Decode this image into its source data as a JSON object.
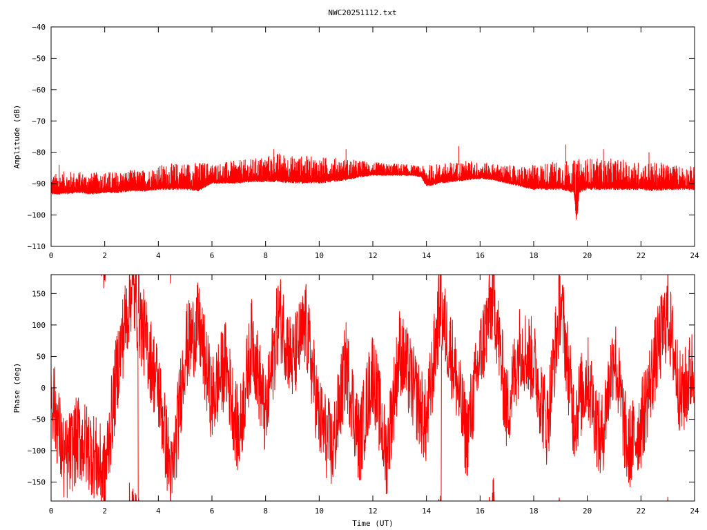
{
  "chart_data": [
    {
      "type": "line",
      "title": "NWC20251112.txt",
      "xlabel": "",
      "ylabel": "Amplitude (dB)",
      "xlim": [
        0,
        24
      ],
      "ylim": [
        -110,
        -40
      ],
      "xticks": [
        0,
        2,
        4,
        6,
        8,
        10,
        12,
        14,
        16,
        18,
        20,
        22,
        24
      ],
      "yticks": [
        -110,
        -100,
        -90,
        -80,
        -70,
        -60,
        -50,
        -40
      ],
      "grid": false,
      "line_color": "#ff0000",
      "series": [
        {
          "x": [
            0,
            0.5,
            1,
            1.5,
            2,
            2.5,
            3,
            3.5,
            4,
            4.5,
            5,
            5.5,
            5.8,
            6,
            6.5,
            7,
            7.5,
            8,
            8.5,
            9,
            9.5,
            10,
            10.5,
            11,
            11.5,
            12,
            12.5,
            13,
            13.5,
            13.8,
            14,
            14.5,
            15,
            15.5,
            16,
            16.5,
            17,
            17.5,
            18,
            18.5,
            19,
            19.5,
            19.6,
            19.7,
            20,
            20.5,
            21,
            21.5,
            22,
            22.5,
            23,
            23.5,
            24
          ],
          "y_low": [
            -93.5,
            -93.5,
            -93,
            -93.5,
            -93,
            -93,
            -92.5,
            -92.5,
            -92,
            -92,
            -92,
            -92.5,
            -91,
            -90,
            -90,
            -90,
            -89.5,
            -89.5,
            -89.5,
            -90,
            -90,
            -90,
            -89.5,
            -89,
            -88,
            -87.5,
            -87.5,
            -87.5,
            -87.5,
            -88,
            -91,
            -90,
            -89.5,
            -89,
            -88.5,
            -89,
            -90,
            -91,
            -92,
            -92,
            -92,
            -93,
            -102.5,
            -93,
            -92,
            -92,
            -92,
            -92,
            -92,
            -92.5,
            -92,
            -92,
            -92
          ],
          "y_high": [
            -87,
            -86,
            -86,
            -86.5,
            -86,
            -86,
            -85.5,
            -85.5,
            -84,
            -83.5,
            -83,
            -83,
            -83,
            -83.5,
            -83,
            -82.5,
            -82,
            -81,
            -80,
            -81,
            -81,
            -81.5,
            -81.5,
            -82,
            -82.5,
            -83,
            -83.5,
            -83.5,
            -84,
            -84.5,
            -84,
            -83.5,
            -83,
            -82.5,
            -83,
            -83.5,
            -84,
            -84.5,
            -84,
            -83,
            -82.5,
            -82.5,
            -82,
            -82,
            -81.5,
            -82,
            -82,
            -82.5,
            -83,
            -83,
            -83.5,
            -84,
            -84.5
          ]
        }
      ]
    },
    {
      "type": "line",
      "title": "",
      "xlabel": "Time (UT)",
      "ylabel": "Phase (deg)",
      "xlim": [
        0,
        24
      ],
      "ylim": [
        -180,
        180
      ],
      "xticks": [
        0,
        2,
        4,
        6,
        8,
        10,
        12,
        14,
        16,
        18,
        20,
        22,
        24
      ],
      "yticks": [
        -150,
        -100,
        -50,
        0,
        50,
        100,
        150
      ],
      "grid": false,
      "line_color": "#ff0000",
      "series": [
        {
          "x": [
            0,
            0.5,
            1,
            1.5,
            2,
            2.5,
            3,
            3.5,
            4,
            4.5,
            5,
            5.5,
            6,
            6.5,
            7,
            7.5,
            8,
            8.5,
            9,
            9.5,
            10,
            10.5,
            11,
            11.5,
            12,
            12.5,
            13,
            13.5,
            14,
            14.5,
            15,
            15.5,
            16,
            16.5,
            17,
            17.5,
            18,
            18.5,
            19,
            19.5,
            20,
            20.5,
            21,
            21.5,
            22,
            22.5,
            23,
            23.5,
            24
          ],
          "y": [
            0,
            -120,
            -80,
            -100,
            -140,
            40,
            160,
            80,
            0,
            -150,
            60,
            100,
            -20,
            40,
            -80,
            80,
            -50,
            120,
            40,
            100,
            -50,
            -100,
            40,
            -90,
            30,
            -110,
            60,
            0,
            -60,
            130,
            40,
            -80,
            50,
            150,
            -40,
            70,
            40,
            -60,
            140,
            -50,
            20,
            -90,
            60,
            -100,
            -60,
            40,
            120,
            -20,
            40
          ]
        }
      ]
    }
  ]
}
